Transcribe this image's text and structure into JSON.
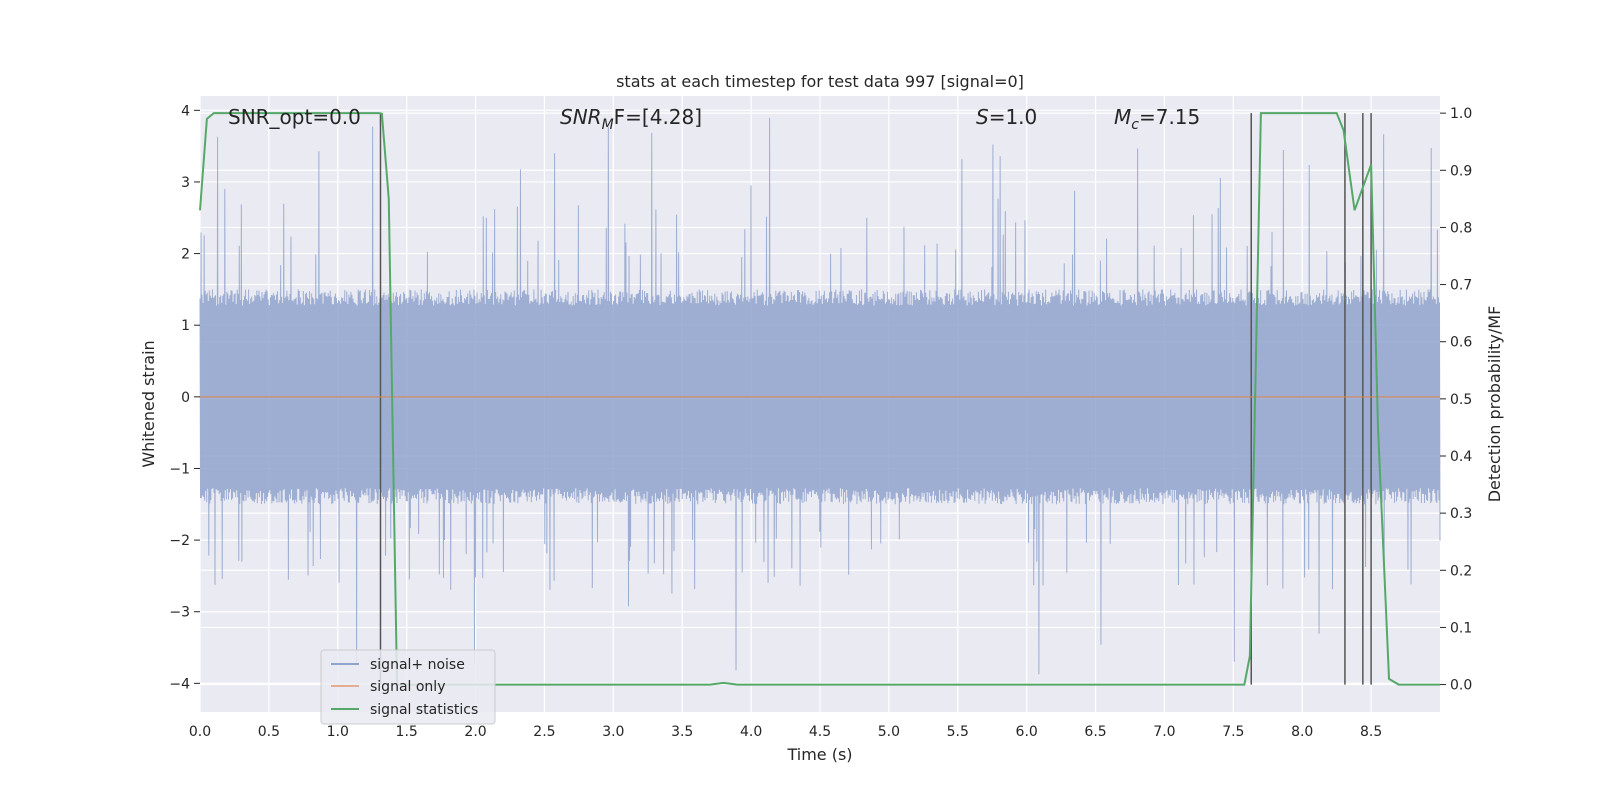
{
  "chart_data": {
    "type": "line",
    "title": "stats at each timestep for test data 997 [signal=0]",
    "xlabel": "Time (s)",
    "ylabel": "Whitened strain",
    "y2label": "Detection probability/MF",
    "xlim": [
      0.0,
      9.0
    ],
    "ylim": [
      -4.4,
      4.2
    ],
    "y2lim": [
      -0.048,
      1.03
    ],
    "xticks": [
      "0.0",
      "0.5",
      "1.0",
      "1.5",
      "2.0",
      "2.5",
      "3.0",
      "3.5",
      "4.0",
      "4.5",
      "5.0",
      "5.5",
      "6.0",
      "6.5",
      "7.0",
      "7.5",
      "8.0",
      "8.5"
    ],
    "yticks": [
      "4",
      "3",
      "2",
      "1",
      "0",
      "−1",
      "−2",
      "−3",
      "−4"
    ],
    "y2ticks": [
      "1.0",
      "0.9",
      "0.8",
      "0.7",
      "0.6",
      "0.5",
      "0.4",
      "0.3",
      "0.2",
      "0.1",
      "0.0"
    ],
    "grid": true,
    "legend_position": "lower-left",
    "annotations": {
      "snr_opt": "SNR_opt=0.0",
      "snr_mf_label": "SNR",
      "snr_mf_sub": "M",
      "snr_mf_rest": "F=[4.28]",
      "s_label": "S",
      "s_rest": "=1.0",
      "mc_label": "M",
      "mc_sub": "c",
      "mc_rest": "=7.15"
    },
    "noise_envelope": {
      "typical_amplitude": 1.5,
      "max_amplitude": 3.9,
      "note_seed": 997
    },
    "series": [
      {
        "name": "signal+ noise",
        "color": "#8fa3cc",
        "description": "whitened noisy strain sampled over 0–9 s, amplitude mostly within ±1.5, peaks to about ±3.9"
      },
      {
        "name": "signal only",
        "color": "#dd8452",
        "x": [
          0.0,
          9.0
        ],
        "y": [
          0.0,
          0.0
        ]
      },
      {
        "name": "signal statistics",
        "color": "#55a868",
        "axis": "right",
        "x": [
          0.0,
          0.05,
          0.1,
          0.2,
          1.2,
          1.3,
          1.32,
          1.37,
          1.43,
          1.5,
          3.7,
          3.8,
          3.9,
          7.5,
          7.58,
          7.62,
          7.7,
          8.25,
          8.3,
          8.38,
          8.5,
          8.55,
          8.63,
          8.7,
          9.0
        ],
        "y": [
          0.83,
          0.99,
          1.0,
          1.0,
          1.0,
          1.0,
          0.999,
          0.85,
          0.0,
          0.0,
          0.0,
          0.003,
          0.0,
          0.0,
          0.0,
          0.05,
          1.0,
          1.0,
          0.97,
          0.83,
          0.91,
          0.45,
          0.01,
          0.0,
          0.0
        ]
      }
    ],
    "vertical_markers": {
      "color": "#555555",
      "x": [
        1.31,
        7.63,
        8.31,
        8.44,
        8.5
      ],
      "y2_top": 1.0,
      "y2_bottom": 0.0
    }
  },
  "legend": {
    "items": [
      {
        "label": "signal+ noise",
        "color": "#8fa3cc"
      },
      {
        "label": "signal only",
        "color": "#dd8452"
      },
      {
        "label": "signal statistics",
        "color": "#55a868"
      }
    ]
  },
  "colors": {
    "plot_background": "#eaeaf2",
    "grid": "#ffffff",
    "text": "#262626"
  }
}
